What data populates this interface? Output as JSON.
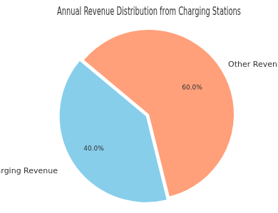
{
  "chart_data": {
    "type": "pie",
    "title": "Annual Revenue Distribution from Charging Stations",
    "categories": [
      "Charging Revenue",
      "Other Revenue"
    ],
    "values": [
      40,
      60
    ],
    "value_labels": [
      "40.0%",
      "60.0%"
    ],
    "colors": [
      "#87CEEB",
      "#FFA07A"
    ],
    "data_labels": true
  }
}
